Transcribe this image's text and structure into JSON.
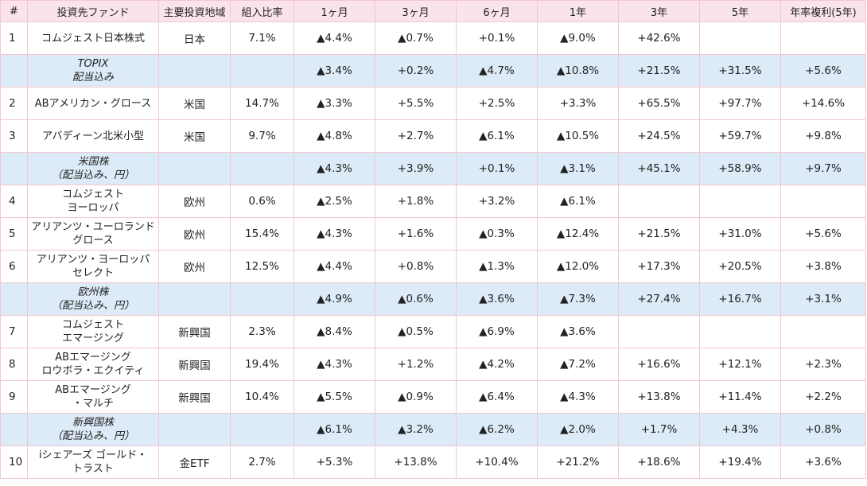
{
  "headers": [
    "#",
    "投資先ファンド",
    "主要投資地域",
    "組入比率",
    "1ヶ月",
    "3ヶ月",
    "6ヶ月",
    "1年",
    "3年",
    "5年",
    "年率複利(5年)"
  ],
  "rows": [
    {
      "type": "fund",
      "num": "1",
      "name": [
        "コムジェスト日本株式"
      ],
      "region": "日本",
      "weight": "7.1%",
      "m1": "▲4.4%",
      "m3": "▲0.7%",
      "m6": "+0.1%",
      "y1": "▲9.0%",
      "y3": "+42.6%",
      "y5": "",
      "cagr": ""
    },
    {
      "type": "bench",
      "num": "",
      "name": [
        "TOPIX",
        "配当込み"
      ],
      "region": "",
      "weight": "",
      "m1": "▲3.4%",
      "m3": "+0.2%",
      "m6": "▲4.7%",
      "y1": "▲10.8%",
      "y3": "+21.5%",
      "y5": "+31.5%",
      "cagr": "+5.6%"
    },
    {
      "type": "fund",
      "num": "2",
      "name": [
        "ABアメリカン・グロース"
      ],
      "region": "米国",
      "weight": "14.7%",
      "m1": "▲3.3%",
      "m3": "+5.5%",
      "m6": "+2.5%",
      "y1": "+3.3%",
      "y3": "+65.5%",
      "y5": "+97.7%",
      "cagr": "+14.6%"
    },
    {
      "type": "fund",
      "num": "3",
      "name": [
        "アバディーン北米小型"
      ],
      "region": "米国",
      "weight": "9.7%",
      "m1": "▲4.8%",
      "m3": "+2.7%",
      "m6": "▲6.1%",
      "y1": "▲10.5%",
      "y3": "+24.5%",
      "y5": "+59.7%",
      "cagr": "+9.8%"
    },
    {
      "type": "bench",
      "num": "",
      "name": [
        "米国株",
        "（配当込み、円）"
      ],
      "region": "",
      "weight": "",
      "m1": "▲4.3%",
      "m3": "+3.9%",
      "m6": "+0.1%",
      "y1": "▲3.1%",
      "y3": "+45.1%",
      "y5": "+58.9%",
      "cagr": "+9.7%"
    },
    {
      "type": "fund",
      "num": "4",
      "name": [
        "コムジェスト",
        "ヨーロッパ"
      ],
      "region": "欧州",
      "weight": "0.6%",
      "m1": "▲2.5%",
      "m3": "+1.8%",
      "m6": "+3.2%",
      "y1": "▲6.1%",
      "y3": "",
      "y5": "",
      "cagr": ""
    },
    {
      "type": "fund",
      "num": "5",
      "name": [
        "アリアンツ・ユーロランド",
        "グロース"
      ],
      "region": "欧州",
      "weight": "15.4%",
      "m1": "▲4.3%",
      "m3": "+1.6%",
      "m6": "▲0.3%",
      "y1": "▲12.4%",
      "y3": "+21.5%",
      "y5": "+31.0%",
      "cagr": "+5.6%"
    },
    {
      "type": "fund",
      "num": "6",
      "name": [
        "アリアンツ・ヨーロッパ",
        "セレクト"
      ],
      "region": "欧州",
      "weight": "12.5%",
      "m1": "▲4.4%",
      "m3": "+0.8%",
      "m6": "▲1.3%",
      "y1": "▲12.0%",
      "y3": "+17.3%",
      "y5": "+20.5%",
      "cagr": "+3.8%"
    },
    {
      "type": "bench",
      "num": "",
      "name": [
        "欧州株",
        "（配当込み、円）"
      ],
      "region": "",
      "weight": "",
      "m1": "▲4.9%",
      "m3": "▲0.6%",
      "m6": "▲3.6%",
      "y1": "▲7.3%",
      "y3": "+27.4%",
      "y5": "+16.7%",
      "cagr": "+3.1%"
    },
    {
      "type": "fund",
      "num": "7",
      "name": [
        "コムジェスト",
        "エマージング"
      ],
      "region": "新興国",
      "weight": "2.3%",
      "m1": "▲8.4%",
      "m3": "▲0.5%",
      "m6": "▲6.9%",
      "y1": "▲3.6%",
      "y3": "",
      "y5": "",
      "cagr": ""
    },
    {
      "type": "fund",
      "num": "8",
      "name": [
        "ABエマージング",
        "ロウボラ・エクイティ"
      ],
      "region": "新興国",
      "weight": "19.4%",
      "m1": "▲4.3%",
      "m3": "+1.2%",
      "m6": "▲4.2%",
      "y1": "▲7.2%",
      "y3": "+16.6%",
      "y5": "+12.1%",
      "cagr": "+2.3%"
    },
    {
      "type": "fund",
      "num": "9",
      "name": [
        "ABエマージング",
        "・マルチ"
      ],
      "region": "新興国",
      "weight": "10.4%",
      "m1": "▲5.5%",
      "m3": "▲0.9%",
      "m6": "▲6.4%",
      "y1": "▲4.3%",
      "y3": "+13.8%",
      "y5": "+11.4%",
      "cagr": "+2.2%"
    },
    {
      "type": "bench",
      "num": "",
      "name": [
        "新興国株",
        "（配当込み、円）"
      ],
      "region": "",
      "weight": "",
      "m1": "▲6.1%",
      "m3": "▲3.2%",
      "m6": "▲6.2%",
      "y1": "▲2.0%",
      "y3": "+1.7%",
      "y5": "+4.3%",
      "cagr": "+0.8%"
    },
    {
      "type": "fund",
      "num": "10",
      "name": [
        "iシェアーズ ゴールド・",
        "トラスト"
      ],
      "region": "金ETF",
      "weight": "2.7%",
      "m1": "+5.3%",
      "m3": "+13.8%",
      "m6": "+10.4%",
      "y1": "+21.2%",
      "y3": "+18.6%",
      "y5": "+19.4%",
      "cagr": "+3.6%"
    }
  ]
}
